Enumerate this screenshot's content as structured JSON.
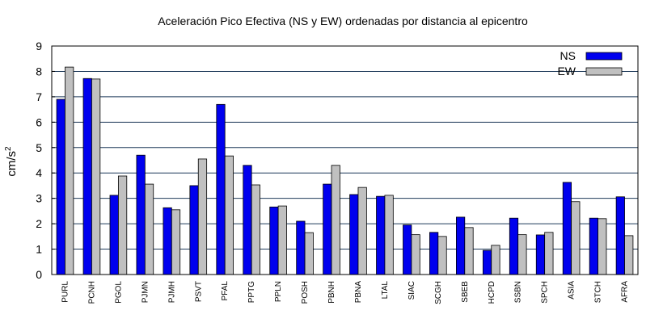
{
  "chart_data": {
    "type": "bar",
    "title": "Aceleración Pico Efectiva (NS y EW) ordenadas por distancia al epicentro",
    "xlabel": "",
    "ylabel_base": "cm/s",
    "ylabel_sup": "2",
    "ylim": [
      0,
      9
    ],
    "yticks": [
      "0",
      "1",
      "2",
      "3",
      "4",
      "5",
      "6",
      "7",
      "8",
      "9"
    ],
    "grid": "horizontal",
    "legend_position": "top-right",
    "categories": [
      "PURL",
      "PCNH",
      "PGOL",
      "PJMN",
      "PJMH",
      "PSVT",
      "PFAL",
      "PPTG",
      "PPLN",
      "POSH",
      "PBNH",
      "PBNA",
      "LTAL",
      "SIAC",
      "SCGH",
      "SBEB",
      "HCPD",
      "SSBN",
      "SPCH",
      "ASIA",
      "STCH",
      "AFRA"
    ],
    "series": [
      {
        "name": "NS",
        "color": "#0000ee",
        "values": [
          6.9,
          7.72,
          3.12,
          4.7,
          2.63,
          3.5,
          6.7,
          4.3,
          2.66,
          2.1,
          3.56,
          3.15,
          3.08,
          1.95,
          1.66,
          2.26,
          0.95,
          2.22,
          1.56,
          3.63,
          2.22,
          3.06
        ]
      },
      {
        "name": "EW",
        "color": "#c0c0c0",
        "values": [
          8.17,
          7.7,
          3.88,
          3.56,
          2.55,
          4.55,
          4.67,
          3.53,
          2.7,
          1.65,
          4.3,
          3.43,
          3.12,
          1.57,
          1.5,
          1.85,
          1.15,
          1.57,
          1.66,
          2.87,
          2.2,
          1.53
        ]
      }
    ]
  }
}
